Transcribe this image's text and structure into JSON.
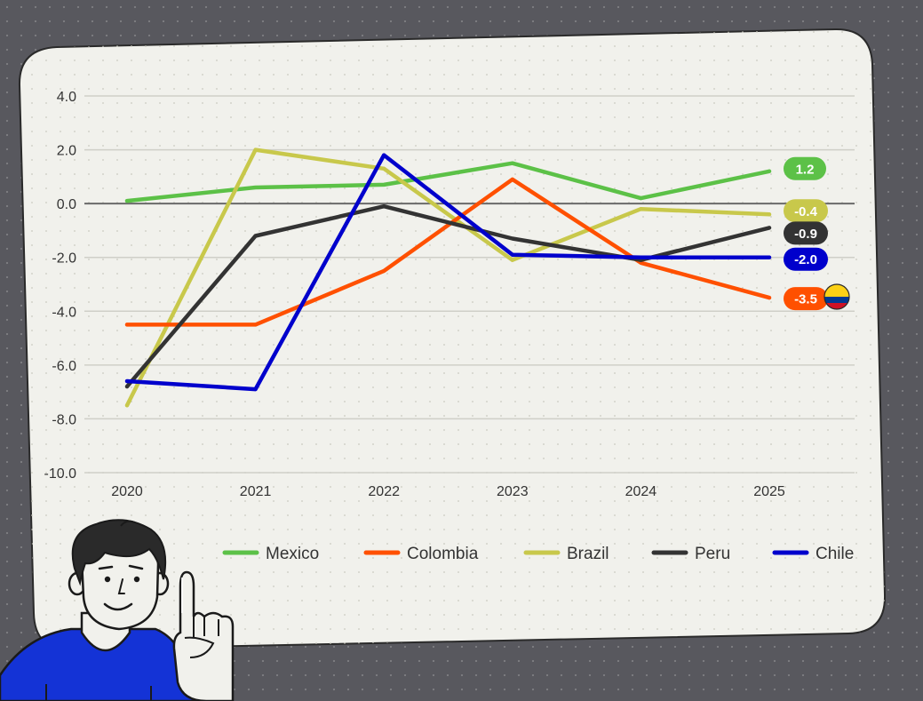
{
  "chart_data": {
    "type": "line",
    "categories": [
      "2020",
      "2021",
      "2022",
      "2023",
      "2024",
      "2025"
    ],
    "ylim": [
      -10,
      4
    ],
    "yticks": [
      "4.0",
      "2.0",
      "0.0",
      "-2.0",
      "-4.0",
      "-6.0",
      "-8.0",
      "-10.0"
    ],
    "grid": true,
    "legend_position": "bottom",
    "series": [
      {
        "name": "Mexico",
        "color": "#5cc147",
        "values": [
          0.1,
          0.6,
          0.7,
          1.5,
          0.2,
          1.2
        ],
        "end_label": "1.2"
      },
      {
        "name": "Colombia",
        "color": "#ff5000",
        "values": [
          -4.5,
          -4.5,
          -2.5,
          0.9,
          -2.2,
          -3.5
        ],
        "end_label": "-3.5"
      },
      {
        "name": "Brazil",
        "color": "#c8c84b",
        "values": [
          -7.5,
          2.0,
          1.3,
          -2.1,
          -0.2,
          -0.4
        ],
        "end_label": "-0.4"
      },
      {
        "name": "Peru",
        "color": "#333333",
        "values": [
          -6.8,
          -1.2,
          -0.1,
          -1.3,
          -2.1,
          -0.9
        ],
        "end_label": "-0.9"
      },
      {
        "name": "Chile",
        "color": "#0000cc",
        "values": [
          -6.6,
          -6.9,
          1.8,
          -1.9,
          -2.0,
          -2.0
        ],
        "end_label": "-2.0"
      }
    ],
    "highlight": {
      "series": "Colombia",
      "icon": "colombia-flag-icon"
    }
  },
  "illustration": {
    "icon": "person-pointing-icon"
  }
}
